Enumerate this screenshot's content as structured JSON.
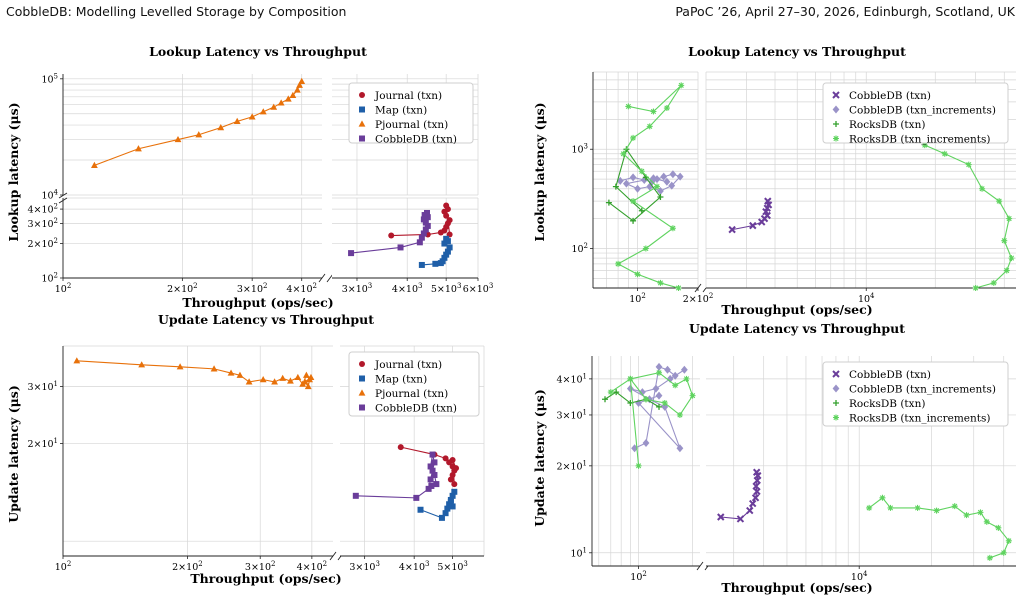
{
  "header": {
    "left": "CobbleDB: Modelling Levelled Storage by Composition",
    "right": "PaPoC ’26, April 27–30, 2026, Edinburgh, Scotland, UK"
  },
  "chart_data": [
    {
      "id": "tl",
      "type": "scatter",
      "title": "Lookup Latency vs Throughput",
      "xlabel": "Throughput (ops/sec)",
      "ylabel": "Lookup latency (μs)",
      "xscale": "log",
      "yscale": "log",
      "broken_axes": true,
      "panel_x_ranges": [
        [
          100,
          450
        ],
        [
          2600,
          6000
        ]
      ],
      "panel_y_ranges": [
        [
          10000,
          110000
        ],
        [
          100,
          500
        ]
      ],
      "x_ticks": [
        [
          "10^2",
          "2×10^2",
          "3×10^2",
          "4×10^2"
        ],
        [
          "3×10^3",
          "4×10^3",
          "5×10^3",
          "6×10^3"
        ]
      ],
      "y_ticks": [
        [
          "10^4",
          "10^5"
        ],
        [
          "10^2",
          "2×10^2",
          "3×10^2",
          "4×10^2"
        ]
      ],
      "legend": {
        "position": "top-right",
        "entries": [
          "Journal (txn)",
          "Map (txn)",
          "Pjournal (txn)",
          "CobbleDB (txn)"
        ]
      },
      "grid": true,
      "series": [
        {
          "name": "Journal (txn)",
          "color": "#b2182b",
          "marker": "circle",
          "x": [
            3650,
            4500,
            4850,
            4950,
            5000,
            5050,
            5100,
            5000,
            4950,
            5050,
            5000,
            5100
          ],
          "y": [
            235,
            240,
            250,
            260,
            280,
            300,
            320,
            350,
            380,
            400,
            430,
            240
          ]
        },
        {
          "name": "Map (txn)",
          "color": "#1f5fa8",
          "marker": "square",
          "x": [
            4350,
            4700,
            4850,
            4900,
            4950,
            5000,
            5050,
            5100,
            4950,
            5050,
            5000
          ],
          "y": [
            130,
            133,
            135,
            140,
            150,
            160,
            170,
            185,
            200,
            210,
            220
          ]
        },
        {
          "name": "Pjournal (txn)",
          "color": "#e8710a",
          "marker": "triangle",
          "x": [
            120,
            155,
            195,
            220,
            250,
            275,
            300,
            320,
            340,
            355,
            370,
            380,
            390,
            395,
            400
          ],
          "y": [
            18000,
            25000,
            30000,
            33000,
            38000,
            43000,
            47000,
            52000,
            57000,
            62000,
            67000,
            72000,
            80000,
            88000,
            95000
          ]
        },
        {
          "name": "CobbleDB (txn)",
          "color": "#6a3d9a",
          "marker": "square",
          "x": [
            2900,
            3850,
            4300,
            4350,
            4400,
            4450,
            4500,
            4450,
            4400,
            4500,
            4420,
            4480
          ],
          "y": [
            165,
            185,
            205,
            225,
            245,
            265,
            285,
            305,
            325,
            340,
            355,
            370
          ]
        }
      ]
    },
    {
      "id": "tr",
      "type": "scatter",
      "title": "Lookup Latency vs Throughput",
      "xlabel": "Throughput (ops/sec)",
      "ylabel": "Lookup latency (μs)",
      "xscale": "log",
      "yscale": "log",
      "broken_axes": true,
      "panel_x_ranges": [
        [
          60,
          200
        ],
        [
          2000,
          45000
        ]
      ],
      "y_range": [
        40,
        6000
      ],
      "x_ticks": [
        [
          "10^2",
          "2×10^2"
        ],
        [
          "10^4"
        ]
      ],
      "y_ticks": [
        "10^2",
        "10^3"
      ],
      "legend": {
        "position": "top-right",
        "entries": [
          "CobbleDB (txn)",
          "CobbleDB (txn_increments)",
          "RocksDB (txn)",
          "RocksDB (txn_increments)"
        ]
      },
      "grid": true,
      "series": [
        {
          "name": "CobbleDB (txn)",
          "color": "#6a3d9a",
          "marker": "x",
          "x": [
            2600,
            3200,
            3500,
            3600,
            3700,
            3650,
            3700,
            3750,
            3720
          ],
          "y": [
            155,
            170,
            185,
            200,
            215,
            235,
            255,
            275,
            300
          ]
        },
        {
          "name": "CobbleDB (txn_increments)",
          "color": "#9a93c8",
          "marker": "diamond",
          "x": [
            82,
            95,
            108,
            118,
            125,
            135,
            150,
            163,
            148,
            130,
            115,
            100,
            88,
            120,
            140
          ],
          "y": [
            480,
            520,
            490,
            470,
            500,
            530,
            560,
            530,
            430,
            380,
            420,
            400,
            450,
            510,
            470
          ]
        },
        {
          "name": "RocksDB (txn)",
          "color": "#33a02c",
          "marker": "plus",
          "x": [
            72,
            95,
            130,
            110,
            88,
            78,
            105
          ],
          "y": [
            290,
            190,
            330,
            520,
            1000,
            420,
            240
          ]
        },
        {
          "name": "RocksDB (txn_increments)",
          "color": "#5fd35f",
          "marker": "star",
          "x": [
            90,
            120,
            165,
            140,
            115,
            95,
            85,
            105,
            125,
            95,
            150,
            110,
            80,
            100,
            130,
            160,
            18000,
            22000,
            28000,
            32000,
            38000,
            42000,
            40000,
            43000,
            41000,
            36000,
            30000
          ],
          "y": [
            2700,
            2400,
            4400,
            2600,
            1700,
            1300,
            900,
            600,
            420,
            300,
            160,
            100,
            70,
            55,
            45,
            40,
            1100,
            900,
            700,
            400,
            300,
            200,
            120,
            80,
            60,
            45,
            40
          ]
        }
      ]
    },
    {
      "id": "bl",
      "type": "scatter",
      "title": "Update Latency vs Throughput",
      "xlabel": "Throughput (ops/sec)",
      "ylabel": "Update latency (μs)",
      "xscale": "log",
      "yscale": "log",
      "broken_axes": true,
      "panel_x_ranges": [
        [
          100,
          450
        ],
        [
          2600,
          6000
        ]
      ],
      "y_range": [
        9,
        40
      ],
      "x_ticks": [
        [
          "10^2",
          "2×10^2",
          "3×10^2",
          "4×10^2"
        ],
        [
          "3×10^3",
          "4×10^3",
          "5×10^3"
        ]
      ],
      "y_ticks": [
        "2×10^1",
        "3×10^1"
      ],
      "legend": {
        "position": "top-right",
        "entries": [
          "Journal (txn)",
          "Map (txn)",
          "Pjournal (txn)",
          "CobbleDB (txn)"
        ]
      },
      "grid": true,
      "series": [
        {
          "name": "Journal (txn)",
          "color": "#b2182b",
          "marker": "circle",
          "x": [
            3700,
            4500,
            4800,
            4900,
            5000,
            5050,
            5000,
            4950,
            5050,
            5000,
            5100
          ],
          "y": [
            19.5,
            18.5,
            18,
            17.5,
            17,
            16.5,
            16,
            15.5,
            15,
            17.8,
            16.8
          ]
        },
        {
          "name": "Map (txn)",
          "color": "#1f5fa8",
          "marker": "square",
          "x": [
            4150,
            4700,
            4800,
            4850,
            4900,
            4950,
            5000,
            5050,
            4950,
            5000
          ],
          "y": [
            12.5,
            11.8,
            12.2,
            12.6,
            13,
            13.4,
            13.8,
            14.2,
            13.2,
            12.8
          ]
        },
        {
          "name": "Pjournal (txn)",
          "color": "#e8710a",
          "marker": "triangle",
          "x": [
            108,
            155,
            192,
            232,
            255,
            268,
            282,
            305,
            325,
            340,
            355,
            370,
            380,
            388,
            395,
            392,
            385,
            398
          ],
          "y": [
            36,
            35,
            34.5,
            34,
            33,
            32.5,
            31,
            31.5,
            31,
            31.8,
            31.2,
            32,
            30.5,
            32.5,
            31.5,
            30,
            31,
            32
          ]
        },
        {
          "name": "CobbleDB (txn)",
          "color": "#6a3d9a",
          "marker": "square",
          "x": [
            2850,
            4050,
            4350,
            4400,
            4450,
            4500,
            4450,
            4400,
            4500,
            4550,
            4420
          ],
          "y": [
            13.8,
            13.6,
            14.5,
            15.5,
            16.5,
            17.5,
            18.5,
            17,
            16,
            15,
            14.8
          ]
        }
      ]
    },
    {
      "id": "br",
      "type": "scatter",
      "title": "Update Latency vs Throughput",
      "xlabel": "Throughput (ops/sec)",
      "ylabel": "Update latency (μs)",
      "xscale": "log",
      "yscale": "log",
      "broken_axes": true,
      "panel_x_ranges": [
        [
          55,
          220
        ],
        [
          2300,
          45000
        ]
      ],
      "y_range": [
        9,
        48
      ],
      "x_ticks": [
        [
          "10^2"
        ],
        [
          "10^4"
        ]
      ],
      "y_ticks": [
        "10^1",
        "2×10^1",
        "3×10^1",
        "4×10^1"
      ],
      "legend": {
        "position": "top-right",
        "entries": [
          "CobbleDB (txn)",
          "CobbleDB (txn_increments)",
          "RocksDB (txn)",
          "RocksDB (txn_increments)"
        ]
      },
      "grid": true,
      "series": [
        {
          "name": "CobbleDB (txn)",
          "color": "#6a3d9a",
          "marker": "x",
          "x": [
            2650,
            3200,
            3500,
            3600,
            3700,
            3750,
            3720,
            3760,
            3780,
            3740
          ],
          "y": [
            13.3,
            13.1,
            14,
            14.8,
            15.5,
            16.3,
            17,
            17.8,
            18.5,
            19
          ]
        },
        {
          "name": "CobbleDB (txn_increments)",
          "color": "#9a93c8",
          "marker": "diamond",
          "x": [
            95,
            110,
            130,
            145,
            160,
            180,
            150,
            125,
            105,
            90,
            115,
            140,
            170,
            100,
            130
          ],
          "y": [
            23,
            24,
            44,
            43,
            41,
            43,
            40,
            37,
            36,
            37,
            34,
            32,
            23,
            33,
            35
          ]
        },
        {
          "name": "RocksDB (txn)",
          "color": "#33a02c",
          "marker": "plus",
          "x": [
            65,
            75,
            90,
            110,
            130
          ],
          "y": [
            34,
            36,
            33,
            34,
            32
          ]
        },
        {
          "name": "RocksDB (txn_increments)",
          "color": "#5fd35f",
          "marker": "star",
          "x": [
            70,
            90,
            130,
            160,
            185,
            200,
            170,
            140,
            110,
            90,
            100,
            11000,
            12500,
            13500,
            17500,
            21000,
            25000,
            28000,
            32000,
            34000,
            38000,
            42000,
            40000,
            35000
          ],
          "y": [
            36,
            40,
            42,
            38,
            40,
            35,
            30,
            33,
            34,
            40,
            20,
            14.3,
            15.5,
            14.3,
            14.3,
            14,
            14.5,
            13.5,
            13.8,
            12.8,
            12.2,
            11,
            10,
            9.6
          ]
        }
      ]
    }
  ]
}
